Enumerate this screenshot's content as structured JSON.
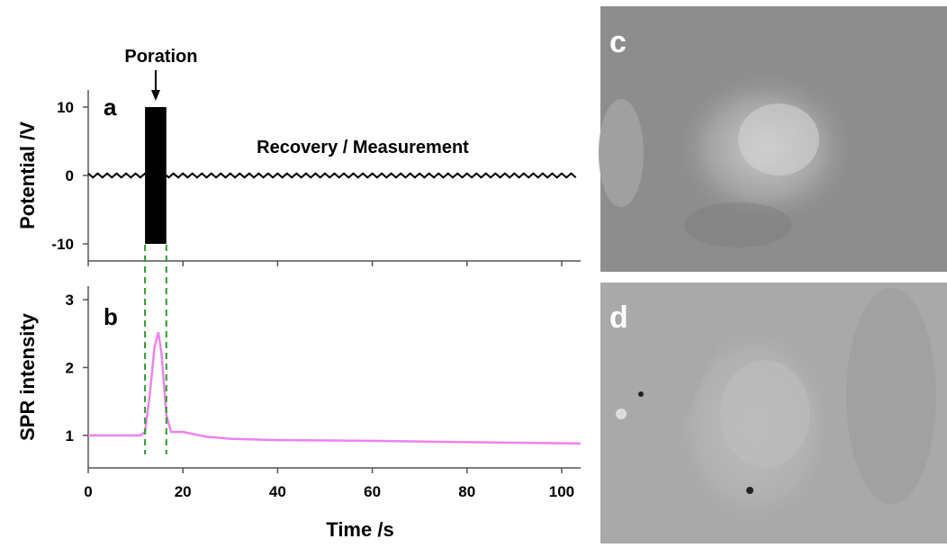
{
  "chart_data": [
    {
      "type": "line",
      "panel": "a",
      "ylabel": "Potential /V",
      "annotation": "Recovery / Measurement",
      "callout": "Poration",
      "xlim": [
        0,
        104
      ],
      "xticks": [
        0,
        20,
        40,
        60,
        80,
        100
      ],
      "ylim": [
        -12.5,
        12.5
      ],
      "yticks": [
        10,
        0,
        -10
      ],
      "pulse": {
        "x": [
          12,
          16.5
        ],
        "values": [
          -10,
          10
        ],
        "color": "#000000"
      },
      "series": [
        {
          "color": "#000000",
          "x": [
            0,
            1,
            2,
            3,
            4,
            5,
            6,
            7,
            8,
            9,
            10,
            11,
            12,
            13,
            14,
            15,
            16,
            17,
            18,
            19,
            20,
            21,
            22,
            23,
            24,
            25,
            26,
            27,
            28,
            29,
            30,
            31,
            32,
            33,
            34,
            35,
            36,
            37,
            38,
            39,
            40,
            41,
            42,
            43,
            44,
            45,
            46,
            47,
            48,
            49,
            50,
            51,
            52,
            53,
            54,
            55,
            56,
            57,
            58,
            59,
            60,
            61,
            62,
            63,
            64,
            65,
            66,
            67,
            68,
            69,
            70,
            71,
            72,
            73,
            74,
            75,
            76,
            77,
            78,
            79,
            80,
            81,
            82,
            83,
            84,
            85,
            86,
            87,
            88,
            89,
            90,
            91,
            92,
            93,
            94,
            95,
            96,
            97,
            98,
            99,
            100,
            101,
            102,
            103
          ],
          "values": [
            0.3,
            -0.3,
            0.3,
            -0.3,
            0.3,
            -0.3,
            0.3,
            -0.3,
            0.3,
            -0.3,
            0.3,
            -0.3,
            0.3,
            -0.3,
            0.3,
            -0.3,
            0.3,
            -0.3,
            0.3,
            -0.3,
            0.3,
            -0.3,
            0.3,
            -0.3,
            0.3,
            -0.3,
            0.3,
            -0.3,
            0.3,
            -0.3,
            0.3,
            -0.3,
            0.3,
            -0.3,
            0.3,
            -0.3,
            0.3,
            -0.3,
            0.3,
            -0.3,
            0.3,
            -0.3,
            0.3,
            -0.3,
            0.3,
            -0.3,
            0.3,
            -0.3,
            0.3,
            -0.3,
            0.3,
            -0.3,
            0.3,
            -0.3,
            0.3,
            -0.3,
            0.3,
            -0.3,
            0.3,
            -0.3,
            0.3,
            -0.3,
            0.3,
            -0.3,
            0.3,
            -0.3,
            0.3,
            -0.3,
            0.3,
            -0.3,
            0.3,
            -0.3,
            0.3,
            -0.3,
            0.3,
            -0.3,
            0.3,
            -0.3,
            0.3,
            -0.3,
            0.3,
            -0.3,
            0.3,
            -0.3,
            0.3,
            -0.3,
            0.3,
            -0.3,
            0.3,
            -0.3,
            0.3,
            -0.3,
            0.3,
            -0.3,
            0.3,
            -0.3,
            0.3,
            -0.3,
            0.3,
            -0.3,
            0.3,
            -0.3,
            0.3,
            -0.3
          ]
        }
      ]
    },
    {
      "type": "line",
      "panel": "b",
      "ylabel": "SPR intensity",
      "xlabel": "Time /s",
      "xlim": [
        0,
        104
      ],
      "xticks": [
        0,
        20,
        40,
        60,
        80,
        100
      ],
      "ylim": [
        0.52,
        3.2
      ],
      "yticks": [
        3,
        2,
        1
      ],
      "markers": [
        12,
        16.5
      ],
      "marker_color": "#2a9d2a",
      "series": [
        {
          "color": "#ee82ee",
          "x": [
            0,
            11,
            12,
            13,
            14,
            14.8,
            15.5,
            16.5,
            17.5,
            20,
            25,
            30,
            40,
            60,
            80,
            104
          ],
          "values": [
            1.0,
            1.0,
            1.05,
            1.6,
            2.3,
            2.52,
            2.2,
            1.3,
            1.05,
            1.05,
            0.98,
            0.95,
            0.93,
            0.92,
            0.9,
            0.88
          ]
        }
      ]
    }
  ],
  "images": [
    {
      "label": "c"
    },
    {
      "label": "d"
    }
  ]
}
